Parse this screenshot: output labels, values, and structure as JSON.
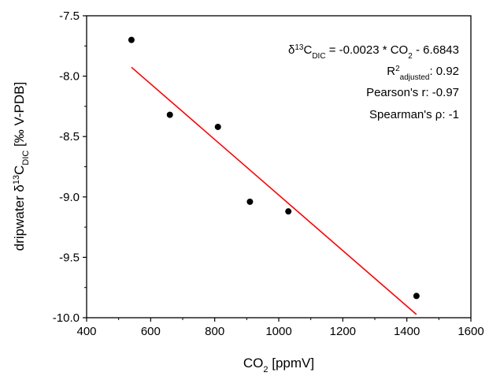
{
  "chart_data": {
    "type": "scatter",
    "x": [
      540,
      660,
      810,
      910,
      1030,
      1430
    ],
    "y": [
      -7.7,
      -8.32,
      -8.42,
      -9.04,
      -9.12,
      -9.82
    ],
    "xlim": [
      400,
      1600
    ],
    "ylim": [
      -10.0,
      -7.5
    ],
    "x_ticks": [
      "400",
      "600",
      "800",
      "1000",
      "1200",
      "1400",
      "1600"
    ],
    "y_ticks": [
      "-7.5",
      "-8.0",
      "-8.5",
      "-9.0",
      "-9.5",
      "-10.0"
    ],
    "xlabel": {
      "main": "CO",
      "sub": "2",
      "rest": " [ppmV]"
    },
    "ylabel": {
      "pre": "dripwater δ",
      "sup": "13",
      "mid": "C",
      "sub": "DIC",
      "post": " [‰ V-PDB]"
    },
    "fit_line": {
      "slope": -0.0023,
      "intercept": -6.6843,
      "x_range": [
        540,
        1430
      ],
      "color": "#ff0000"
    },
    "marker_color": "#000000",
    "annotations": {
      "equation": {
        "d": "δ",
        "sup": "13",
        "c": "C",
        "sub": "DIC",
        "eq": " = -0.0023 * CO",
        "sub2": "2",
        "tail": " - 6.6843"
      },
      "r2": {
        "r": "R",
        "sup": "2",
        "sub": "adjusted",
        "val": ": 0.92"
      },
      "pearson": "Pearson's r: -0.97",
      "spearman": "Spearman's ρ: -1"
    }
  }
}
